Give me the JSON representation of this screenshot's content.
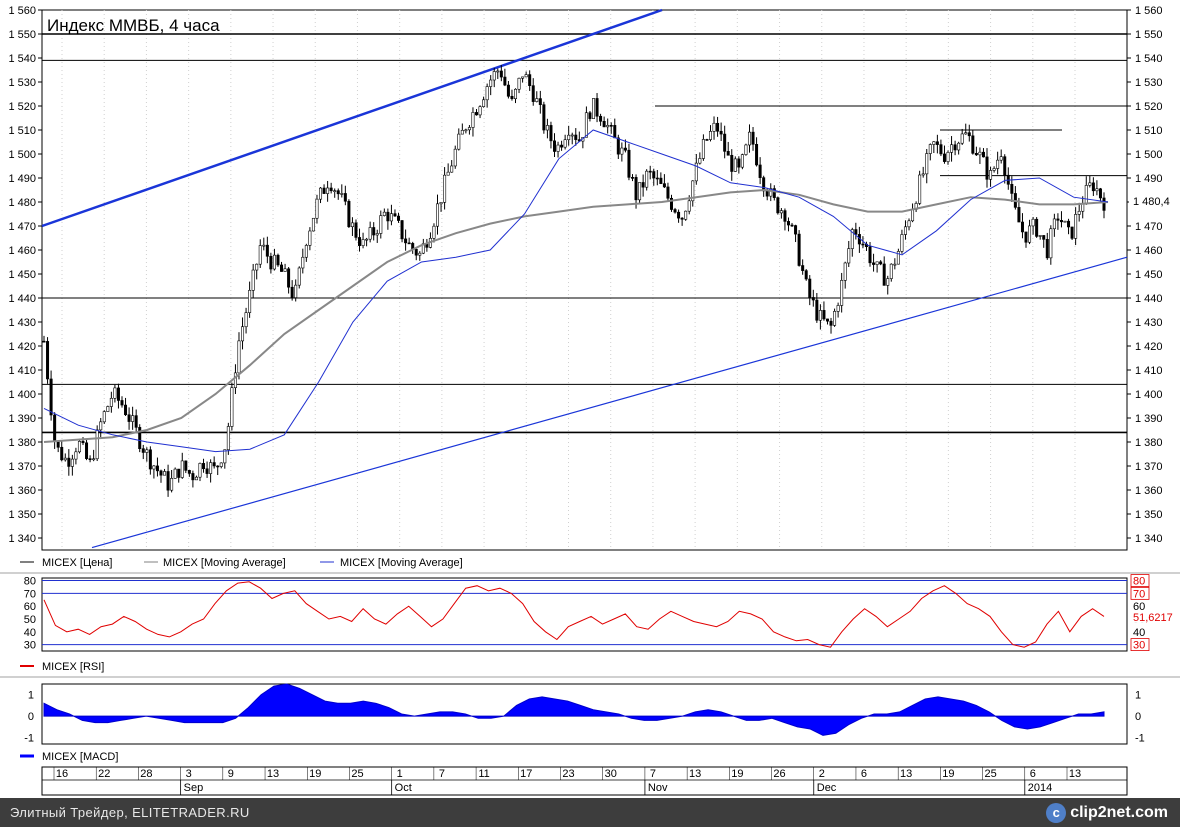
{
  "chart_data": [
    {
      "type": "candlestick",
      "title": "Индекс ММВБ, 4 часа",
      "ylim": [
        1335,
        1560
      ],
      "y_ticks": [
        "1 340",
        "1 350",
        "1 360",
        "1 370",
        "1 380",
        "1 390",
        "1 400",
        "1 410",
        "1 420",
        "1 430",
        "1 440",
        "1 450",
        "1 460",
        "1 470",
        "1 480",
        "1 490",
        "1 500",
        "1 510",
        "1 520",
        "1 530",
        "1 540",
        "1 550",
        "1 560"
      ],
      "last_value_label": "1 480,4",
      "last_value": 1480.4,
      "grid": true,
      "legend": [
        {
          "name": "MICEX [Цена]",
          "color": "#000000"
        },
        {
          "name": "MICEX [Moving Average]",
          "color": "#808080"
        },
        {
          "name": "MICEX [Moving Average]",
          "color": "#2030d0"
        }
      ],
      "price_path": [
        1422,
        1378,
        1372,
        1380,
        1370,
        1388,
        1400,
        1395,
        1385,
        1375,
        1368,
        1362,
        1370,
        1366,
        1372,
        1368,
        1380,
        1420,
        1440,
        1462,
        1455,
        1450,
        1440,
        1465,
        1480,
        1490,
        1482,
        1470,
        1462,
        1468,
        1476,
        1470,
        1462,
        1458,
        1470,
        1485,
        1500,
        1512,
        1520,
        1530,
        1536,
        1520,
        1534,
        1525,
        1510,
        1502,
        1512,
        1506,
        1520,
        1516,
        1506,
        1498,
        1482,
        1492,
        1487,
        1480,
        1474,
        1490,
        1505,
        1512,
        1498,
        1492,
        1508,
        1490,
        1480,
        1476,
        1462,
        1442,
        1432,
        1427,
        1446,
        1470,
        1462,
        1452,
        1448,
        1460,
        1476,
        1490,
        1504,
        1500,
        1506,
        1508,
        1500,
        1490,
        1502,
        1478,
        1466,
        1470,
        1460,
        1475,
        1465,
        1480,
        1488,
        1480.4
      ],
      "ma_long": [
        1380,
        1381,
        1382,
        1385,
        1390,
        1400,
        1412,
        1425,
        1435,
        1445,
        1455,
        1462,
        1467,
        1471,
        1474,
        1476,
        1478,
        1479,
        1480,
        1482,
        1484,
        1485,
        1483,
        1479,
        1476,
        1476,
        1479,
        1482,
        1481,
        1479,
        1479,
        1480
      ],
      "ma_short": [
        1394,
        1387,
        1383,
        1380,
        1378,
        1376,
        1377,
        1383,
        1405,
        1430,
        1447,
        1455,
        1457,
        1460,
        1475,
        1498,
        1510,
        1505,
        1500,
        1495,
        1488,
        1486,
        1482,
        1474,
        1462,
        1458,
        1468,
        1481,
        1489,
        1490,
        1482,
        1480
      ],
      "horizontal_levels": [
        1550,
        1539,
        1520,
        1510,
        1491,
        1440,
        1404,
        1384
      ],
      "trendlines": [
        {
          "from": [
            "2013-08-14",
            1470
          ],
          "to": [
            "2013-10-22",
            1560
          ]
        },
        {
          "from": [
            "2013-08-22",
            1336
          ],
          "to": [
            "2014-01-20",
            1456
          ]
        }
      ]
    },
    {
      "type": "line",
      "series": [
        {
          "name": "MICEX [RSI]",
          "color": "#e00000",
          "last_value_label": "51,6217",
          "last_value": 51.62
        }
      ],
      "ylim": [
        25,
        82
      ],
      "y_ticks": [
        "30",
        "40",
        "50",
        "60",
        "70",
        "80"
      ],
      "levels": [
        30,
        70,
        80
      ],
      "rsi_path": [
        65,
        45,
        40,
        42,
        38,
        44,
        46,
        52,
        48,
        42,
        38,
        36,
        40,
        46,
        50,
        62,
        72,
        78,
        79,
        74,
        66,
        70,
        72,
        62,
        56,
        50,
        52,
        48,
        58,
        50,
        46,
        54,
        60,
        52,
        44,
        50,
        62,
        74,
        76,
        72,
        74,
        70,
        62,
        48,
        40,
        34,
        44,
        48,
        52,
        46,
        50,
        54,
        44,
        42,
        50,
        56,
        52,
        48,
        46,
        44,
        48,
        56,
        54,
        50,
        40,
        36,
        33,
        34,
        30,
        28,
        40,
        50,
        58,
        52,
        44,
        50,
        56,
        66,
        72,
        76,
        70,
        62,
        58,
        52,
        40,
        30,
        28,
        32,
        46,
        56,
        40,
        52,
        58,
        52
      ]
    },
    {
      "type": "area",
      "series": [
        {
          "name": "MICEX [MACD]",
          "color": "#0000ff"
        }
      ],
      "ylim": [
        -1.3,
        1.5
      ],
      "y_ticks": [
        "1",
        "0",
        "-1"
      ],
      "macd_path": [
        0.6,
        0.3,
        0.1,
        -0.2,
        -0.3,
        -0.3,
        -0.2,
        -0.1,
        0.0,
        -0.1,
        -0.2,
        -0.3,
        -0.3,
        -0.3,
        -0.3,
        -0.1,
        0.4,
        1.0,
        1.4,
        1.5,
        1.3,
        1.0,
        0.7,
        0.6,
        0.6,
        0.7,
        0.6,
        0.4,
        0.1,
        0.0,
        0.1,
        0.2,
        0.2,
        0.1,
        -0.1,
        -0.1,
        0.0,
        0.5,
        0.8,
        0.9,
        0.8,
        0.7,
        0.5,
        0.3,
        0.2,
        0.1,
        -0.1,
        -0.2,
        -0.2,
        -0.1,
        0.0,
        0.2,
        0.3,
        0.2,
        0.0,
        -0.2,
        -0.2,
        -0.1,
        -0.3,
        -0.5,
        -0.6,
        -0.9,
        -0.8,
        -0.4,
        -0.1,
        0.1,
        0.1,
        0.2,
        0.5,
        0.8,
        0.9,
        0.8,
        0.7,
        0.5,
        0.2,
        -0.2,
        -0.5,
        -0.6,
        -0.5,
        -0.3,
        -0.1,
        0.1,
        0.1,
        0.2
      ]
    }
  ],
  "x_axis": {
    "day_ticks": [
      "16",
      "22",
      "28",
      "3",
      "9",
      "13",
      "19",
      "25",
      "1",
      "7",
      "11",
      "17",
      "23",
      "30",
      "7",
      "13",
      "19",
      "26",
      "2",
      "6",
      "13",
      "19",
      "25",
      "6",
      "13"
    ],
    "month_ticks": [
      "Sep",
      "Oct",
      "Nov",
      "Dec",
      "2014"
    ]
  },
  "footer": {
    "text": "Элитный Трейдер, ELITETRADER.RU",
    "logo_text": "clip2net.com",
    "logo_icon": "clip2net-logo-icon"
  }
}
